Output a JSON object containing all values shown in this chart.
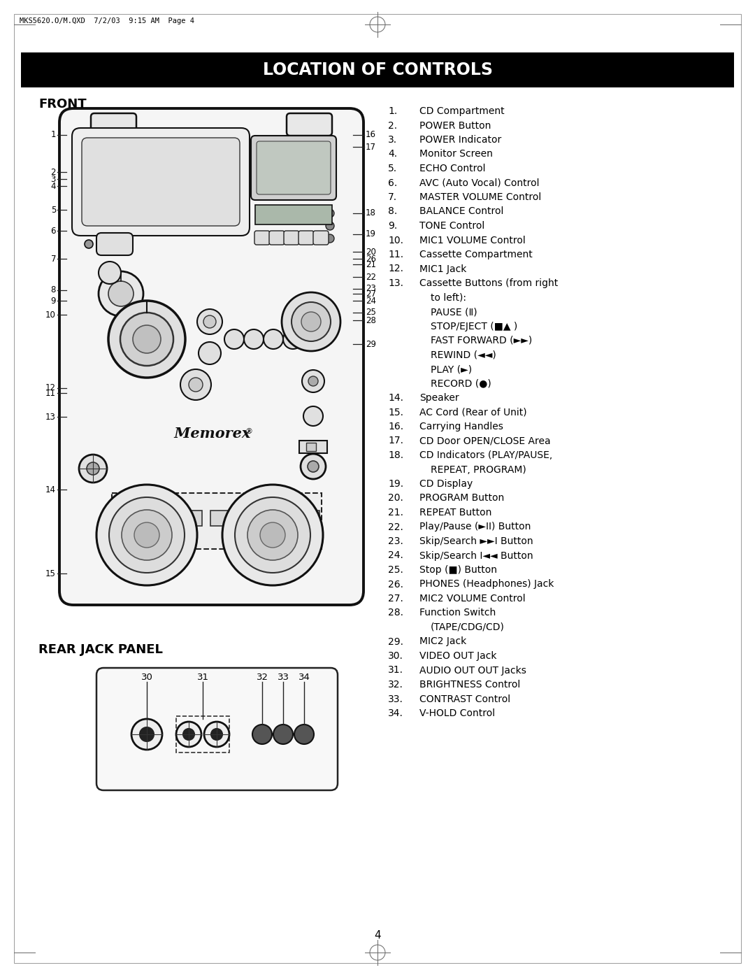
{
  "title": "LOCATION OF CONTROLS",
  "header_text": "MKS5620.O/M.QXD  7/2/03  9:15 AM  Page 4",
  "front_label": "FRONT",
  "rear_label": "REAR JACK PANEL",
  "page_number": "4",
  "bg_color": "#ffffff",
  "list_items": [
    [
      "1.",
      "CD Compartment"
    ],
    [
      "2.",
      "POWER Button"
    ],
    [
      "3.",
      "POWER Indicator"
    ],
    [
      "4.",
      "Monitor Screen"
    ],
    [
      "5.",
      "ECHO Control"
    ],
    [
      "6.",
      "AVC (Auto Vocal) Control"
    ],
    [
      "7.",
      "MASTER VOLUME Control"
    ],
    [
      "8.",
      "BALANCE Control"
    ],
    [
      "9.",
      "TONE Control"
    ],
    [
      "10.",
      "MIC1 VOLUME Control"
    ],
    [
      "11.",
      "Cassette Compartment"
    ],
    [
      "12.",
      "MIC1 Jack"
    ],
    [
      "13.",
      "Cassette Buttons (from right"
    ],
    [
      "",
      "to left):"
    ],
    [
      "",
      "PAUSE (Ⅱ)"
    ],
    [
      "",
      "STOP/EJECT (■▲ )"
    ],
    [
      "",
      "FAST FORWARD (►►)"
    ],
    [
      "",
      "REWIND (◄◄)"
    ],
    [
      "",
      "PLAY (►)"
    ],
    [
      "",
      "RECORD (●)"
    ],
    [
      "14.",
      "Speaker"
    ],
    [
      "15.",
      "AC Cord (Rear of Unit)"
    ],
    [
      "16.",
      "Carrying Handles"
    ],
    [
      "17.",
      "CD Door OPEN/CLOSE Area"
    ],
    [
      "18.",
      "CD Indicators (PLAY/PAUSE,"
    ],
    [
      "",
      "REPEAT, PROGRAM)"
    ],
    [
      "19.",
      "CD Display"
    ],
    [
      "20.",
      "PROGRAM Button"
    ],
    [
      "21.",
      "REPEAT Button"
    ],
    [
      "22.",
      "Play/Pause (►II) Button"
    ],
    [
      "23.",
      "Skip/Search ►►I Button"
    ],
    [
      "24.",
      "Skip/Search I◄◄ Button"
    ],
    [
      "25.",
      "Stop (■) Button"
    ],
    [
      "26.",
      "PHONES (Headphones) Jack"
    ],
    [
      "27.",
      "MIC2 VOLUME Control"
    ],
    [
      "28.",
      "Function Switch"
    ],
    [
      "",
      "(TAPE/CDG/CD)"
    ],
    [
      "29.",
      "MIC2 Jack"
    ],
    [
      "30.",
      "VIDEO OUT Jack"
    ],
    [
      "31.",
      "AUDIO OUT OUT Jacks"
    ],
    [
      "32.",
      "BRIGHTNESS Control"
    ],
    [
      "33.",
      "CONTRAST Control"
    ],
    [
      "34.",
      "V-HOLD Control"
    ]
  ]
}
